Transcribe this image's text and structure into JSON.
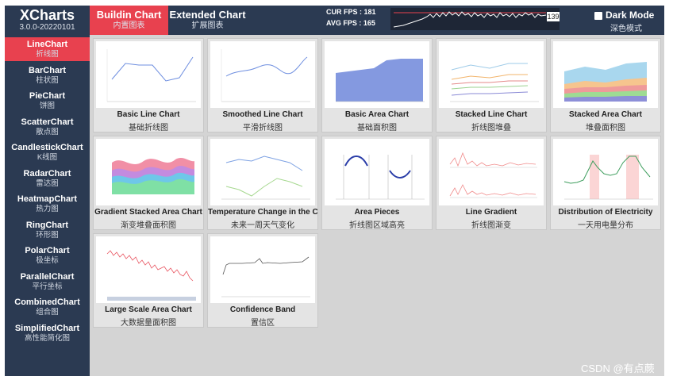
{
  "app": {
    "title": "XCharts",
    "version": "3.0.0-20220101",
    "tabs": [
      {
        "label": "Buildin Chart",
        "sub": "内置图表"
      },
      {
        "label": "Extended Chart",
        "sub": "扩展图表"
      }
    ],
    "cur_fps": "CUR FPS : 181",
    "avg_fps": "AVG FPS : 165",
    "fps_value": "139",
    "dark_mode": {
      "label": "Dark Mode",
      "sub": "深色模式",
      "checked": false
    }
  },
  "sidebar": [
    {
      "label": "LineChart",
      "sub": "折线图"
    },
    {
      "label": "BarChart",
      "sub": "柱状图"
    },
    {
      "label": "PieChart",
      "sub": "饼图"
    },
    {
      "label": "ScatterChart",
      "sub": "散点图"
    },
    {
      "label": "CandlestickChart",
      "sub": "K线图"
    },
    {
      "label": "RadarChart",
      "sub": "雷达图"
    },
    {
      "label": "HeatmapChart",
      "sub": "热力图"
    },
    {
      "label": "RingChart",
      "sub": "环形图"
    },
    {
      "label": "PolarChart",
      "sub": "极坐标"
    },
    {
      "label": "ParallelChart",
      "sub": "平行坐标"
    },
    {
      "label": "CombinedChart",
      "sub": "组合图"
    },
    {
      "label": "SimplifiedChart",
      "sub": "高性能简化图"
    }
  ],
  "cards": [
    {
      "label": "Basic Line Chart",
      "sub": "基础折线图"
    },
    {
      "label": "Smoothed Line Chart",
      "sub": "平滑折线图"
    },
    {
      "label": "Basic Area Chart",
      "sub": "基础面积图"
    },
    {
      "label": "Stacked Line Chart",
      "sub": "折线图堆叠"
    },
    {
      "label": "Stacked Area Chart",
      "sub": "堆叠面积图"
    },
    {
      "label": "Gradient Stacked Area Chart",
      "sub": "渐变堆叠面积图"
    },
    {
      "label": "Temperature Change in the Coming",
      "sub": "未来一周天气变化"
    },
    {
      "label": "Area Pieces",
      "sub": "折线图区域高亮"
    },
    {
      "label": "Line Gradient",
      "sub": "折线图渐变"
    },
    {
      "label": "Distribution of Electricity",
      "sub": "一天用电量分布"
    },
    {
      "label": "Large Scale Area Chart",
      "sub": "大数据量面积图"
    },
    {
      "label": "Confidence Band",
      "sub": "置信区"
    }
  ],
  "watermark": "CSDN @有点蕨",
  "colors": {
    "accent": "#e8414f",
    "nav": "#2b3a52",
    "background": "#d4d4d4"
  }
}
